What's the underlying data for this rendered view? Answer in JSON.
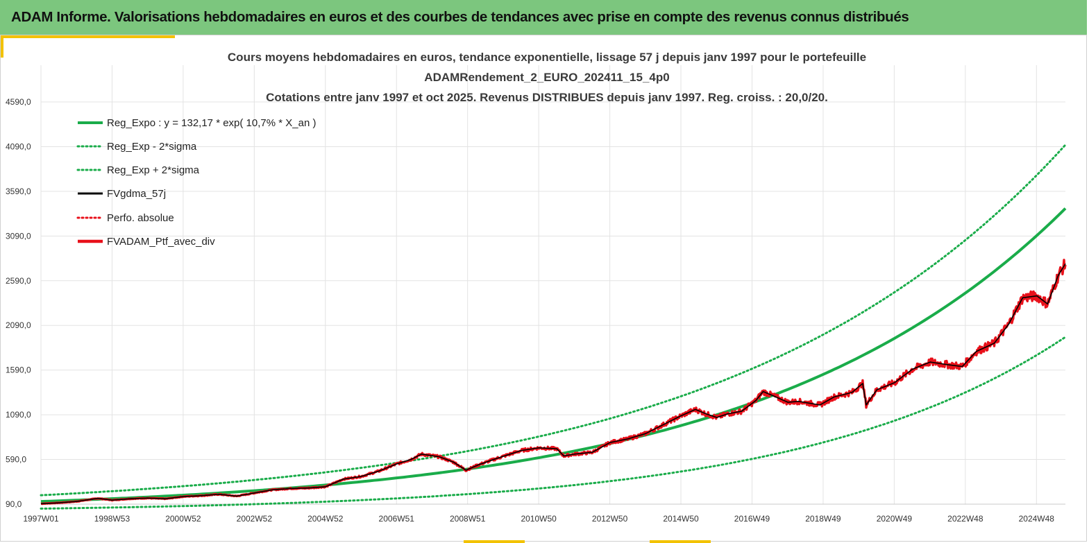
{
  "header": {
    "banner_title": "ADAM Informe. Valorisations hebdomadaires en euros et des courbes de tendances avec prise en compte des revenus connus distribués"
  },
  "colors": {
    "banner_bg": "#7cc67e",
    "accent": "#f2c200",
    "trend": "#1aac4a",
    "smooth": "#000000",
    "portfolio": "#e8101a",
    "grid": "#e3e3e3"
  },
  "chart_data": {
    "type": "line",
    "title_lines": [
      "Cours moyens hebdomadaires  en euros, tendance exponentielle, lissage 57 j depuis janv 1997 pour le portefeuille",
      "ADAMRendement_2_EURO_202411_15_4p0",
      "Cotations  entre janv 1997 et oct 2025. Revenus DISTRIBUES depuis janv 1997. Reg. croiss. : 20,0/20."
    ],
    "x_tick_labels": [
      "1997W01",
      "1998W53",
      "2000W52",
      "2002W52",
      "2004W52",
      "2006W51",
      "2008W51",
      "2010W50",
      "2012W50",
      "2014W50",
      "2016W49",
      "2018W49",
      "2020W49",
      "2022W48",
      "2024W48"
    ],
    "x_range_years": [
      1997.0,
      2025.8
    ],
    "y_tick_labels": [
      "90,0",
      "590,0",
      "1090,0",
      "1590,0",
      "2090,0",
      "2590,0",
      "3090,0",
      "3590,0",
      "4090,0",
      "4590,0"
    ],
    "ylim": [
      90,
      4590
    ],
    "grid": true,
    "legend_position": "top-left",
    "regression": {
      "a": 132.17,
      "rate_per_year": 0.107,
      "upper_end_value": 4110,
      "lower_end_value": 1960,
      "upper_start_value": 190,
      "lower_start_value": 40
    },
    "series": [
      {
        "name": "Reg_Expo : y = 132,17 * exp( 10,7% *  X_an )",
        "style": "solid",
        "color": "#1aac4a",
        "role": "trend"
      },
      {
        "name": "Reg_Exp - 2*sigma",
        "style": "dotted",
        "color": "#1aac4a",
        "role": "lower"
      },
      {
        "name": "Reg_Exp + 2*sigma",
        "style": "dotted",
        "color": "#1aac4a",
        "role": "upper"
      },
      {
        "name": "FVgdma_57j",
        "style": "solid",
        "color": "#000000",
        "role": "smooth"
      },
      {
        "name": "Perfo. absolue",
        "style": "dotted",
        "color": "#e8101a",
        "role": "perfo"
      },
      {
        "name": "FVADAM_Ptf_avec_div",
        "style": "solid-thick",
        "color": "#e8101a",
        "role": "portfolio"
      }
    ],
    "portfolio_points": [
      [
        1997.0,
        95
      ],
      [
        1997.5,
        105
      ],
      [
        1998.0,
        120
      ],
      [
        1998.6,
        155
      ],
      [
        1999.0,
        135
      ],
      [
        1999.5,
        150
      ],
      [
        2000.0,
        158
      ],
      [
        2000.5,
        150
      ],
      [
        2001.0,
        175
      ],
      [
        2001.5,
        185
      ],
      [
        2002.0,
        200
      ],
      [
        2002.5,
        180
      ],
      [
        2003.0,
        215
      ],
      [
        2003.5,
        250
      ],
      [
        2004.0,
        265
      ],
      [
        2004.5,
        270
      ],
      [
        2005.0,
        285
      ],
      [
        2005.5,
        370
      ],
      [
        2006.0,
        400
      ],
      [
        2006.5,
        460
      ],
      [
        2007.0,
        540
      ],
      [
        2007.4,
        590
      ],
      [
        2007.7,
        650
      ],
      [
        2008.2,
        620
      ],
      [
        2008.6,
        560
      ],
      [
        2008.95,
        470
      ],
      [
        2009.3,
        530
      ],
      [
        2009.8,
        600
      ],
      [
        2010.5,
        690
      ],
      [
        2011.0,
        720
      ],
      [
        2011.5,
        710
      ],
      [
        2011.7,
        630
      ],
      [
        2012.0,
        650
      ],
      [
        2012.5,
        670
      ],
      [
        2013.0,
        780
      ],
      [
        2013.5,
        820
      ],
      [
        2014.0,
        880
      ],
      [
        2014.5,
        980
      ],
      [
        2015.0,
        1080
      ],
      [
        2015.4,
        1150
      ],
      [
        2015.7,
        1100
      ],
      [
        2016.0,
        1060
      ],
      [
        2016.3,
        1100
      ],
      [
        2016.7,
        1130
      ],
      [
        2017.1,
        1250
      ],
      [
        2017.3,
        1350
      ],
      [
        2017.6,
        1300
      ],
      [
        2018.0,
        1230
      ],
      [
        2018.3,
        1240
      ],
      [
        2018.9,
        1200
      ],
      [
        2019.3,
        1290
      ],
      [
        2019.8,
        1340
      ],
      [
        2020.1,
        1440
      ],
      [
        2020.2,
        1200
      ],
      [
        2020.5,
        1370
      ],
      [
        2021.0,
        1450
      ],
      [
        2021.5,
        1600
      ],
      [
        2022.0,
        1680
      ],
      [
        2022.5,
        1650
      ],
      [
        2022.9,
        1630
      ],
      [
        2023.3,
        1800
      ],
      [
        2023.8,
        1890
      ],
      [
        2024.2,
        2100
      ],
      [
        2024.6,
        2400
      ],
      [
        2025.0,
        2420
      ],
      [
        2025.3,
        2330
      ],
      [
        2025.6,
        2650
      ],
      [
        2025.8,
        2780
      ]
    ]
  }
}
